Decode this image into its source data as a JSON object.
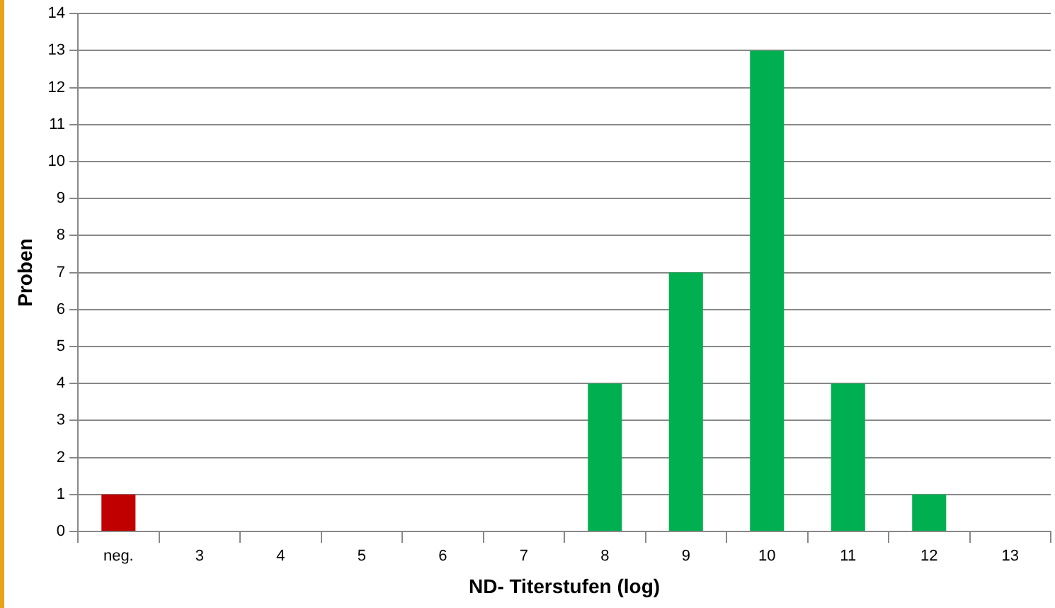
{
  "chart_data": {
    "type": "bar",
    "xlabel": "ND- Titerstufen (log)",
    "ylabel": "Proben",
    "categories": [
      "neg.",
      "3",
      "4",
      "5",
      "6",
      "7",
      "8",
      "9",
      "10",
      "11",
      "12",
      "13"
    ],
    "values": [
      1,
      0,
      0,
      0,
      0,
      0,
      4,
      7,
      13,
      4,
      1,
      0
    ],
    "colors": [
      "#c00000",
      "#00b050",
      "#00b050",
      "#00b050",
      "#00b050",
      "#00b050",
      "#00b050",
      "#00b050",
      "#00b050",
      "#00b050",
      "#00b050",
      "#00b050"
    ],
    "ylim": [
      0,
      14
    ],
    "yticks": [
      0,
      1,
      2,
      3,
      4,
      5,
      6,
      7,
      8,
      9,
      10,
      11,
      12,
      13,
      14
    ],
    "grid": "y",
    "legend": false
  }
}
